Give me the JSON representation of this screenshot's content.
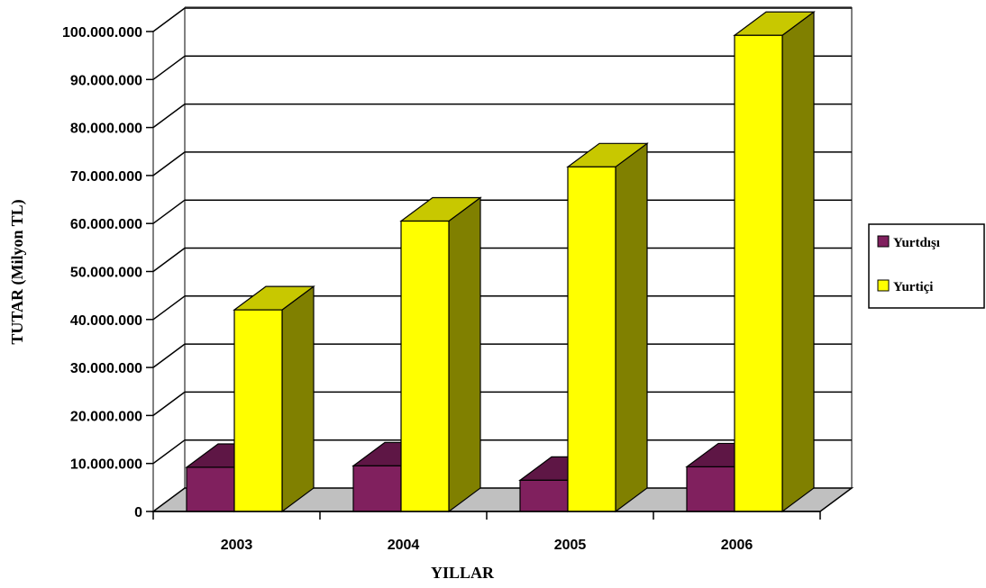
{
  "chart_data": {
    "type": "bar",
    "categories": [
      "2003",
      "2004",
      "2005",
      "2006"
    ],
    "series": [
      {
        "name": "Yurtdışı",
        "values": [
          9200000,
          9500000,
          6500000,
          9300000
        ]
      },
      {
        "name": "Yurtiçi",
        "values": [
          42000000,
          60500000,
          71800000,
          99200000
        ]
      }
    ],
    "title": "",
    "xlabel": "YILLAR",
    "ylabel": "TUTAR (Milyon TL)",
    "ylim": [
      0,
      100000000
    ],
    "yticks": [
      0,
      10000000,
      20000000,
      30000000,
      40000000,
      50000000,
      60000000,
      70000000,
      80000000,
      90000000,
      100000000
    ],
    "ytick_labels": [
      "0",
      "10.000.000",
      "20.000.000",
      "30.000.000",
      "40.000.000",
      "50.000.000",
      "60.000.000",
      "70.000.000",
      "80.000.000",
      "90.000.000",
      "100.000.000"
    ],
    "grid": true,
    "legend_position": "right",
    "colors": {
      "yurtdisi_front": "#80205e",
      "yurtdisi_top": "#5e1645",
      "yurtdisi_side": "#4a0e36",
      "yurtici_front": "#ffff00",
      "yurtici_top": "#c8c800",
      "yurtici_side": "#808000",
      "floor": "#c0c0c0",
      "wall_border": "#808080"
    }
  }
}
